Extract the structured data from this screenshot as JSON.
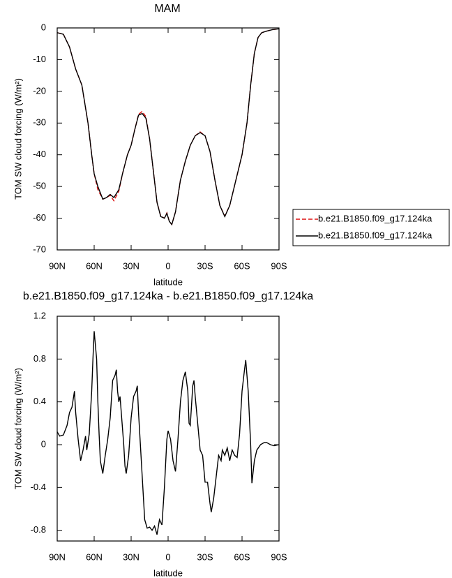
{
  "chart_data": [
    {
      "type": "line",
      "title": "MAM",
      "xlabel": "latitude",
      "ylabel": "TOM SW cloud forcing (W/m²)",
      "x": [
        90,
        85,
        80,
        75,
        70,
        65,
        62,
        60,
        57,
        53,
        50,
        47,
        44,
        40,
        37,
        33,
        30,
        27,
        24,
        21,
        18,
        15,
        12,
        9,
        6,
        3,
        1,
        -1,
        -3,
        -6,
        -10,
        -14,
        -18,
        -22,
        -26,
        -30,
        -34,
        -38,
        -42,
        -46,
        -50,
        -55,
        -60,
        -64,
        -67,
        -70,
        -73,
        -76,
        -80,
        -85,
        -90
      ],
      "series": [
        {
          "name": "b.e21.B1850.f09_g17.124ka",
          "color": "#dd1111",
          "dashed": true,
          "values": [
            -1.5,
            -2,
            -6,
            -13,
            -18,
            -30,
            -40,
            -46,
            -51,
            -54,
            -53.5,
            -52.8,
            -54.5,
            -51.5,
            -46,
            -40,
            -37,
            -32,
            -27.3,
            -26.3,
            -28,
            -35,
            -45,
            -55,
            -59.3,
            -60,
            -58.3,
            -61,
            -62,
            -58,
            -48,
            -42,
            -37,
            -34,
            -32.8,
            -34,
            -39,
            -48,
            -56,
            -59.3,
            -56,
            -48,
            -40,
            -30,
            -18,
            -8,
            -3,
            -1.5,
            -1,
            -0.5,
            -0.3
          ]
        },
        {
          "name": "b.e21.B1850.f09_g17.124ka",
          "color": "#000000",
          "dashed": false,
          "values": [
            -1.5,
            -2,
            -6,
            -13,
            -18,
            -30,
            -40,
            -46,
            -50,
            -54,
            -53.5,
            -52.5,
            -53.5,
            -51,
            -46,
            -40,
            -37,
            -32,
            -27.5,
            -27,
            -28.5,
            -35,
            -45,
            -55,
            -59.5,
            -60,
            -58.5,
            -61,
            -62,
            -58,
            -48,
            -42,
            -37,
            -34,
            -33,
            -34,
            -39,
            -48,
            -56,
            -59.5,
            -56,
            -48,
            -40,
            -30,
            -18,
            -8,
            -3,
            -1.5,
            -1,
            -0.5,
            -0.3
          ]
        }
      ],
      "xlim": [
        90,
        -90
      ],
      "ylim": [
        -70,
        0
      ],
      "xticks": [
        {
          "value": 90,
          "label": "90N"
        },
        {
          "value": 60,
          "label": "60N"
        },
        {
          "value": 30,
          "label": "30N"
        },
        0,
        {
          "value": -30,
          "label": "30S"
        },
        {
          "value": -60,
          "label": "60S"
        },
        {
          "value": -90,
          "label": "90S"
        }
      ],
      "yticks": [
        -70,
        -60,
        -50,
        -40,
        -30,
        -20,
        -10,
        0
      ],
      "legend": "right"
    },
    {
      "type": "line",
      "title": "b.e21.B1850.f09_g17.124ka - b.e21.B1850.f09_g17.124ka",
      "xlabel": "latitude",
      "ylabel": "TOM SW cloud forcing (W/m²)",
      "x": [
        90,
        88,
        85,
        82,
        80,
        78,
        76,
        75,
        73,
        71,
        69,
        67,
        66,
        64,
        62,
        61,
        60,
        58,
        57,
        56,
        55,
        53,
        51,
        49,
        47,
        45,
        43,
        42,
        41,
        40,
        39,
        38,
        36,
        35,
        34,
        32,
        30,
        28,
        26,
        25,
        24,
        23,
        21,
        19,
        17,
        15,
        13,
        11,
        9,
        7,
        5,
        3,
        1,
        0,
        -2,
        -4,
        -6,
        -8,
        -10,
        -12,
        -14,
        -16,
        -17,
        -18,
        -20,
        -21,
        -22,
        -24,
        -26,
        -28,
        -30,
        -32,
        -34,
        -35,
        -37,
        -39,
        -41,
        -43,
        -44,
        -46,
        -48,
        -50,
        -52,
        -54,
        -56,
        -58,
        -60,
        -62,
        -63,
        -65,
        -67,
        -68,
        -70,
        -72,
        -75,
        -78,
        -80,
        -83,
        -86,
        -90
      ],
      "series": [
        {
          "color": "#000000",
          "values": [
            0.12,
            0.08,
            0.09,
            0.18,
            0.3,
            0.35,
            0.5,
            0.3,
            0.05,
            -0.15,
            -0.05,
            0.08,
            -0.05,
            0.1,
            0.5,
            0.8,
            1.06,
            0.8,
            0.4,
            0.1,
            -0.15,
            -0.27,
            -0.1,
            0.05,
            0.25,
            0.6,
            0.65,
            0.7,
            0.5,
            0.4,
            0.45,
            0.3,
            0,
            -0.2,
            -0.27,
            -0.1,
            0.25,
            0.45,
            0.5,
            0.55,
            0.3,
            0.1,
            -0.3,
            -0.7,
            -0.78,
            -0.77,
            -0.8,
            -0.76,
            -0.84,
            -0.7,
            -0.75,
            -0.4,
            0.05,
            0.13,
            0.05,
            -0.15,
            -0.25,
            0.05,
            0.4,
            0.6,
            0.68,
            0.5,
            0.2,
            0.18,
            0.55,
            0.6,
            0.45,
            0.2,
            -0.05,
            -0.1,
            -0.35,
            -0.35,
            -0.55,
            -0.63,
            -0.5,
            -0.3,
            -0.1,
            -0.15,
            -0.05,
            -0.1,
            -0.03,
            -0.15,
            -0.05,
            -0.1,
            -0.12,
            0.1,
            0.5,
            0.7,
            0.79,
            0.5,
            0,
            -0.36,
            -0.15,
            -0.05,
            0,
            0.02,
            0.02,
            0,
            -0.01,
            0
          ]
        }
      ],
      "xlim": [
        90,
        -90
      ],
      "ylim": [
        -0.9,
        1.2
      ],
      "xticks": [
        {
          "value": 90,
          "label": "90N"
        },
        {
          "value": 60,
          "label": "60N"
        },
        {
          "value": 30,
          "label": "30N"
        },
        0,
        {
          "value": -30,
          "label": "30S"
        },
        {
          "value": -60,
          "label": "60S"
        },
        {
          "value": -90,
          "label": "90S"
        }
      ],
      "yticks": [
        -0.8,
        -0.4,
        0,
        0.4,
        0.8,
        1.2
      ]
    }
  ]
}
